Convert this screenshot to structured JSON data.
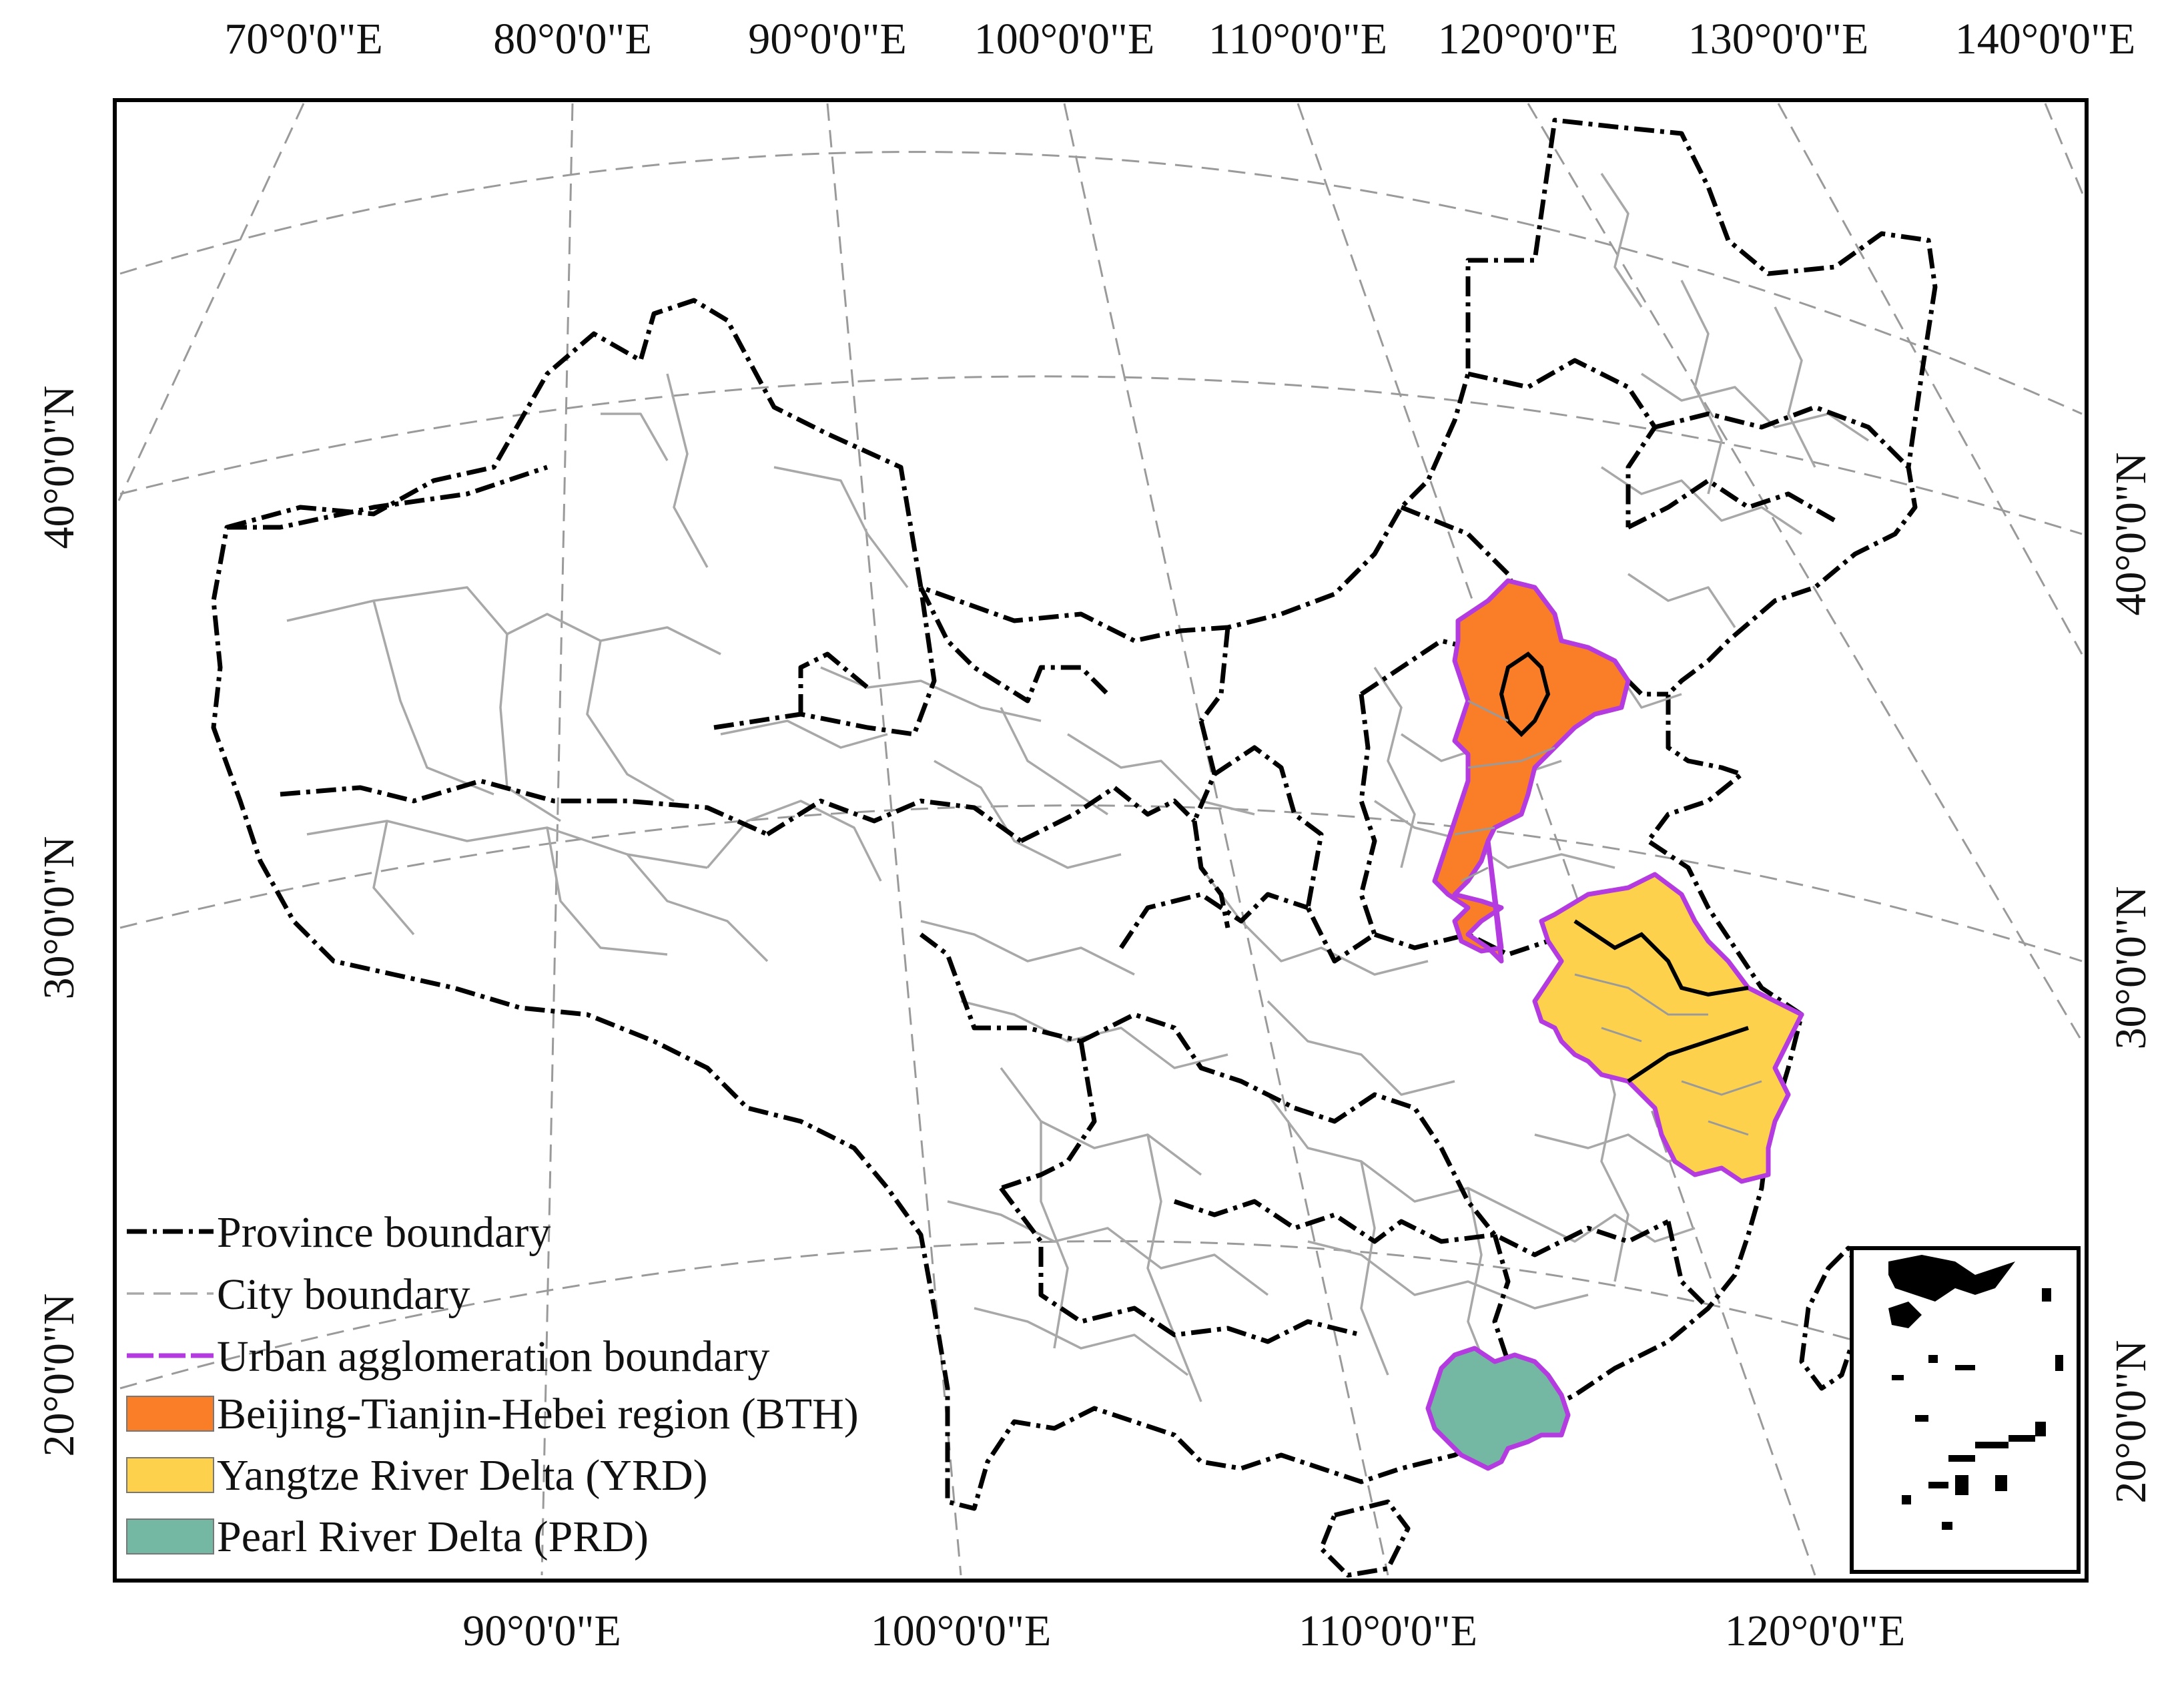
{
  "map": {
    "top_longitude_labels": [
      "70°0'0\"E",
      "80°0'0\"E",
      "90°0'0\"E",
      "100°0'0\"E",
      "110°0'0\"E",
      "120°0'0\"E",
      "130°0'0\"E",
      "140°0'0\"E"
    ],
    "bottom_longitude_labels": [
      "90°0'0\"E",
      "100°0'0\"E",
      "110°0'0\"E",
      "120°0'0\"E"
    ],
    "left_latitude_labels": [
      "40°0'0\"N",
      "30°0'0\"N",
      "20°0'0\"N"
    ],
    "right_latitude_labels": [
      "40°0'0\"N",
      "30°0'0\"N",
      "20°0'0\"N"
    ],
    "legend": {
      "province_boundary": "Province boundary",
      "city_boundary": "City boundary",
      "urban_agglomeration_boundary": "Urban agglomeration boundary",
      "bth": "Beijing-Tianjin-Hebei region (BTH)",
      "yrd": "Yangtze River Delta (YRD)",
      "prd": "Pearl River Delta (PRD)"
    },
    "colors": {
      "province_boundary": "#000000",
      "city_boundary": "#a8a8a8",
      "urban_agglomeration_boundary": "#b33be0",
      "bth": "#fa7d27",
      "yrd": "#fdd14c",
      "prd": "#74b8a3",
      "graticule": "#9a9a9a"
    }
  }
}
